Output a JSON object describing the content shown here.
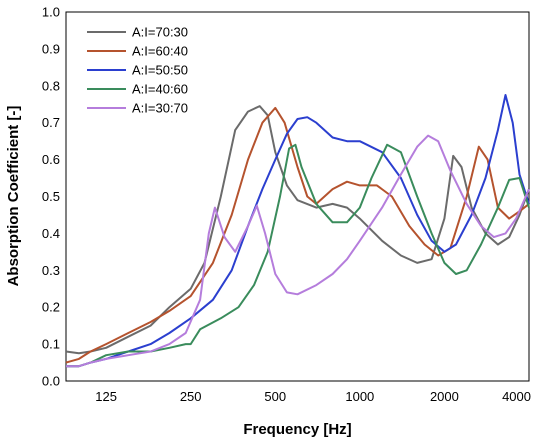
{
  "chart_data": {
    "type": "line",
    "title": "",
    "xlabel": "Frequency [Hz]",
    "ylabel": "Absorption Coefficient [-]",
    "x_scale": "log",
    "xlim": [
      90,
      4000
    ],
    "ylim": [
      0,
      1.0
    ],
    "x_ticks": [
      125,
      250,
      500,
      1000,
      2000,
      4000
    ],
    "x_tick_labels": [
      "125",
      "250",
      "500",
      "1000",
      "2000",
      "4000"
    ],
    "y_ticks": [
      0,
      0.1,
      0.2,
      0.3,
      0.4,
      0.5,
      0.6,
      0.7,
      0.8,
      0.9,
      1.0
    ],
    "y_tick_labels": [
      "0.0",
      "0.1",
      "0.2",
      "0.3",
      "0.4",
      "0.5",
      "0.6",
      "0.7",
      "0.8",
      "0.9",
      "1.0"
    ],
    "grid": false,
    "legend_position": "top-left",
    "series": [
      {
        "name": "A:I=70:30",
        "color": "#6b6b6b",
        "points": [
          [
            90,
            0.08
          ],
          [
            100,
            0.075
          ],
          [
            110,
            0.08
          ],
          [
            125,
            0.09
          ],
          [
            150,
            0.12
          ],
          [
            180,
            0.15
          ],
          [
            210,
            0.2
          ],
          [
            250,
            0.25
          ],
          [
            280,
            0.32
          ],
          [
            320,
            0.5
          ],
          [
            360,
            0.68
          ],
          [
            400,
            0.73
          ],
          [
            440,
            0.745
          ],
          [
            470,
            0.72
          ],
          [
            500,
            0.62
          ],
          [
            550,
            0.53
          ],
          [
            600,
            0.49
          ],
          [
            700,
            0.47
          ],
          [
            800,
            0.48
          ],
          [
            900,
            0.47
          ],
          [
            1000,
            0.44
          ],
          [
            1200,
            0.38
          ],
          [
            1400,
            0.34
          ],
          [
            1600,
            0.32
          ],
          [
            1800,
            0.33
          ],
          [
            2000,
            0.44
          ],
          [
            2150,
            0.61
          ],
          [
            2300,
            0.58
          ],
          [
            2500,
            0.47
          ],
          [
            2800,
            0.4
          ],
          [
            3100,
            0.37
          ],
          [
            3400,
            0.39
          ],
          [
            3700,
            0.45
          ],
          [
            4000,
            0.52
          ]
        ]
      },
      {
        "name": "A:I=60:40",
        "color": "#b5532e",
        "points": [
          [
            90,
            0.05
          ],
          [
            100,
            0.06
          ],
          [
            110,
            0.08
          ],
          [
            125,
            0.1
          ],
          [
            150,
            0.13
          ],
          [
            180,
            0.16
          ],
          [
            210,
            0.19
          ],
          [
            250,
            0.23
          ],
          [
            300,
            0.32
          ],
          [
            350,
            0.45
          ],
          [
            400,
            0.6
          ],
          [
            450,
            0.7
          ],
          [
            500,
            0.74
          ],
          [
            540,
            0.7
          ],
          [
            600,
            0.58
          ],
          [
            650,
            0.5
          ],
          [
            700,
            0.48
          ],
          [
            800,
            0.52
          ],
          [
            900,
            0.54
          ],
          [
            1000,
            0.53
          ],
          [
            1150,
            0.53
          ],
          [
            1300,
            0.5
          ],
          [
            1500,
            0.42
          ],
          [
            1700,
            0.37
          ],
          [
            1900,
            0.34
          ],
          [
            2100,
            0.36
          ],
          [
            2400,
            0.5
          ],
          [
            2650,
            0.635
          ],
          [
            2850,
            0.6
          ],
          [
            3100,
            0.47
          ],
          [
            3400,
            0.44
          ],
          [
            3700,
            0.46
          ],
          [
            4000,
            0.48
          ]
        ]
      },
      {
        "name": "A:I=50:50",
        "color": "#2b3fcf",
        "points": [
          [
            90,
            0.04
          ],
          [
            100,
            0.04
          ],
          [
            110,
            0.05
          ],
          [
            125,
            0.06
          ],
          [
            150,
            0.08
          ],
          [
            180,
            0.1
          ],
          [
            210,
            0.13
          ],
          [
            250,
            0.17
          ],
          [
            300,
            0.22
          ],
          [
            350,
            0.3
          ],
          [
            400,
            0.42
          ],
          [
            450,
            0.52
          ],
          [
            500,
            0.6
          ],
          [
            550,
            0.67
          ],
          [
            600,
            0.71
          ],
          [
            650,
            0.715
          ],
          [
            700,
            0.7
          ],
          [
            800,
            0.66
          ],
          [
            900,
            0.65
          ],
          [
            1000,
            0.65
          ],
          [
            1200,
            0.62
          ],
          [
            1400,
            0.55
          ],
          [
            1600,
            0.45
          ],
          [
            1800,
            0.38
          ],
          [
            2000,
            0.35
          ],
          [
            2200,
            0.37
          ],
          [
            2500,
            0.45
          ],
          [
            2800,
            0.55
          ],
          [
            3100,
            0.68
          ],
          [
            3300,
            0.775
          ],
          [
            3500,
            0.7
          ],
          [
            3700,
            0.56
          ],
          [
            4000,
            0.48
          ]
        ]
      },
      {
        "name": "A:I=40:60",
        "color": "#3a8c5c",
        "points": [
          [
            90,
            0.04
          ],
          [
            100,
            0.04
          ],
          [
            110,
            0.05
          ],
          [
            125,
            0.07
          ],
          [
            150,
            0.08
          ],
          [
            180,
            0.08
          ],
          [
            210,
            0.09
          ],
          [
            240,
            0.1
          ],
          [
            250,
            0.1
          ],
          [
            270,
            0.14
          ],
          [
            320,
            0.17
          ],
          [
            370,
            0.2
          ],
          [
            420,
            0.26
          ],
          [
            470,
            0.35
          ],
          [
            520,
            0.5
          ],
          [
            560,
            0.63
          ],
          [
            590,
            0.64
          ],
          [
            620,
            0.58
          ],
          [
            700,
            0.48
          ],
          [
            800,
            0.43
          ],
          [
            900,
            0.43
          ],
          [
            1000,
            0.47
          ],
          [
            1100,
            0.55
          ],
          [
            1250,
            0.64
          ],
          [
            1400,
            0.62
          ],
          [
            1600,
            0.5
          ],
          [
            1800,
            0.4
          ],
          [
            2000,
            0.32
          ],
          [
            2200,
            0.29
          ],
          [
            2400,
            0.3
          ],
          [
            2700,
            0.37
          ],
          [
            3100,
            0.47
          ],
          [
            3400,
            0.545
          ],
          [
            3700,
            0.55
          ],
          [
            4000,
            0.47
          ]
        ]
      },
      {
        "name": "A:I=30:70",
        "color": "#b57ddc",
        "points": [
          [
            90,
            0.04
          ],
          [
            100,
            0.04
          ],
          [
            110,
            0.05
          ],
          [
            125,
            0.06
          ],
          [
            150,
            0.07
          ],
          [
            180,
            0.08
          ],
          [
            210,
            0.1
          ],
          [
            240,
            0.13
          ],
          [
            270,
            0.22
          ],
          [
            290,
            0.4
          ],
          [
            305,
            0.47
          ],
          [
            330,
            0.39
          ],
          [
            360,
            0.35
          ],
          [
            400,
            0.42
          ],
          [
            430,
            0.475
          ],
          [
            460,
            0.4
          ],
          [
            500,
            0.29
          ],
          [
            550,
            0.24
          ],
          [
            600,
            0.235
          ],
          [
            700,
            0.26
          ],
          [
            800,
            0.29
          ],
          [
            900,
            0.33
          ],
          [
            1000,
            0.38
          ],
          [
            1200,
            0.47
          ],
          [
            1400,
            0.56
          ],
          [
            1600,
            0.635
          ],
          [
            1750,
            0.665
          ],
          [
            1900,
            0.65
          ],
          [
            2100,
            0.57
          ],
          [
            2400,
            0.48
          ],
          [
            2700,
            0.42
          ],
          [
            3000,
            0.39
          ],
          [
            3300,
            0.4
          ],
          [
            3600,
            0.44
          ],
          [
            4000,
            0.52
          ]
        ]
      }
    ]
  }
}
